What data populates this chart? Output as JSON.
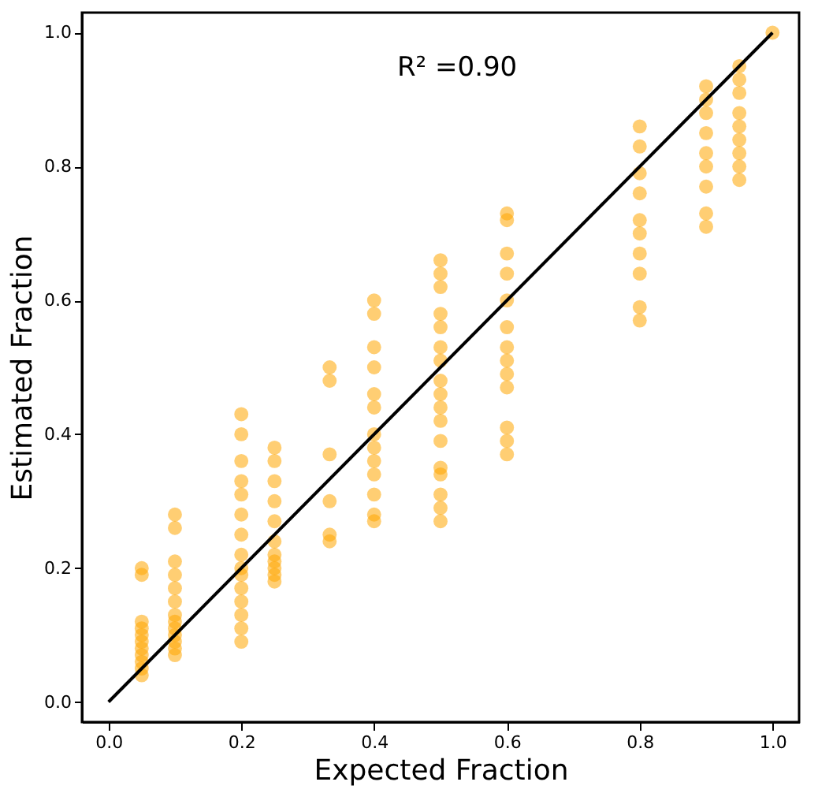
{
  "chart_data": {
    "type": "scatter",
    "xlabel": "Expected Fraction",
    "ylabel": "Estimated Fraction",
    "annotations": [
      "R² =0.90"
    ],
    "xlim": [
      -0.04,
      1.04
    ],
    "ylim": [
      -0.03,
      1.03
    ],
    "xticks": [
      {
        "value": 0,
        "label": "0.0"
      },
      0.2,
      0.4,
      0.6,
      0.8,
      {
        "value": 1,
        "label": "1.0"
      }
    ],
    "yticks": [
      {
        "value": 0,
        "label": "0.0"
      },
      0.2,
      0.4,
      0.6,
      0.8,
      {
        "value": 1,
        "label": "1.0"
      }
    ],
    "grid": false,
    "series": [
      {
        "color": "#ffa500",
        "marker": "circle",
        "x": [
          0.05,
          0.05,
          0.05,
          0.05,
          0.05,
          0.05,
          0.05,
          0.05,
          0.05,
          0.05,
          0.05,
          0.1,
          0.1,
          0.1,
          0.1,
          0.1,
          0.1,
          0.1,
          0.1,
          0.1,
          0.1,
          0.1,
          0.1,
          0.1,
          0.2,
          0.2,
          0.2,
          0.2,
          0.2,
          0.2,
          0.2,
          0.2,
          0.2,
          0.2,
          0.2,
          0.2,
          0.2,
          0.2,
          0.2,
          0.25,
          0.25,
          0.25,
          0.25,
          0.25,
          0.25,
          0.25,
          0.25,
          0.25,
          0.25,
          0.25,
          0.333,
          0.333,
          0.333,
          0.333,
          0.333,
          0.333,
          0.4,
          0.4,
          0.4,
          0.4,
          0.4,
          0.4,
          0.4,
          0.4,
          0.4,
          0.4,
          0.4,
          0.4,
          0.4,
          0.5,
          0.5,
          0.5,
          0.5,
          0.5,
          0.5,
          0.5,
          0.5,
          0.5,
          0.5,
          0.5,
          0.5,
          0.5,
          0.5,
          0.5,
          0.5,
          0.5,
          0.6,
          0.6,
          0.6,
          0.6,
          0.6,
          0.6,
          0.6,
          0.6,
          0.6,
          0.6,
          0.6,
          0.6,
          0.6,
          0.8,
          0.8,
          0.8,
          0.8,
          0.8,
          0.8,
          0.8,
          0.8,
          0.8,
          0.8,
          0.9,
          0.9,
          0.9,
          0.9,
          0.9,
          0.9,
          0.9,
          0.9,
          0.9,
          0.95,
          0.95,
          0.95,
          0.95,
          0.95,
          0.95,
          0.95,
          0.95,
          0.95,
          1.0
        ],
        "values": [
          0.2,
          0.19,
          0.12,
          0.11,
          0.1,
          0.09,
          0.08,
          0.07,
          0.06,
          0.05,
          0.04,
          0.28,
          0.26,
          0.21,
          0.19,
          0.17,
          0.15,
          0.13,
          0.12,
          0.11,
          0.1,
          0.09,
          0.08,
          0.07,
          0.43,
          0.4,
          0.36,
          0.33,
          0.31,
          0.28,
          0.25,
          0.22,
          0.2,
          0.19,
          0.17,
          0.15,
          0.13,
          0.11,
          0.09,
          0.38,
          0.36,
          0.33,
          0.3,
          0.27,
          0.24,
          0.22,
          0.21,
          0.2,
          0.19,
          0.18,
          0.5,
          0.48,
          0.37,
          0.3,
          0.25,
          0.24,
          0.6,
          0.58,
          0.53,
          0.5,
          0.46,
          0.44,
          0.4,
          0.38,
          0.36,
          0.34,
          0.31,
          0.28,
          0.27,
          0.66,
          0.64,
          0.62,
          0.58,
          0.56,
          0.53,
          0.51,
          0.48,
          0.46,
          0.44,
          0.42,
          0.39,
          0.35,
          0.34,
          0.31,
          0.29,
          0.27,
          0.73,
          0.72,
          0.67,
          0.64,
          0.6,
          0.56,
          0.53,
          0.51,
          0.49,
          0.47,
          0.41,
          0.39,
          0.37,
          0.86,
          0.83,
          0.79,
          0.76,
          0.72,
          0.7,
          0.67,
          0.64,
          0.59,
          0.57,
          0.92,
          0.9,
          0.88,
          0.85,
          0.82,
          0.8,
          0.77,
          0.73,
          0.71,
          0.95,
          0.93,
          0.91,
          0.88,
          0.86,
          0.84,
          0.82,
          0.8,
          0.78,
          1.0
        ]
      },
      {
        "type": "line",
        "color": "#000000",
        "marker": "none",
        "line_style": "solid",
        "x": [
          0.0,
          1.0
        ],
        "values": [
          0.0,
          1.0
        ]
      }
    ]
  }
}
